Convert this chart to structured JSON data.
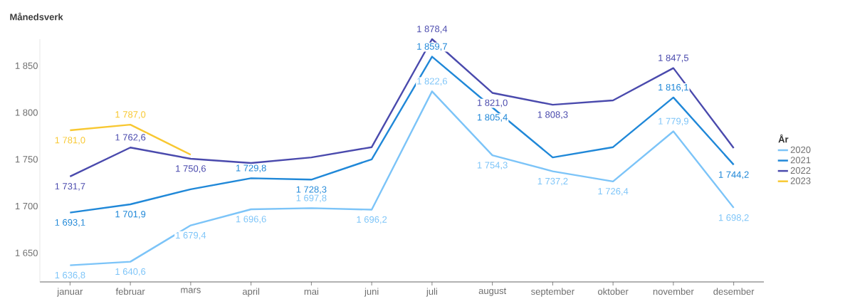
{
  "chart_data": {
    "type": "line",
    "ylabel": "Månedsverk",
    "legend_title": "År",
    "categories": [
      "januar",
      "februar",
      "mars",
      "april",
      "mai",
      "juni",
      "juli",
      "august",
      "september",
      "oktober",
      "november",
      "desember"
    ],
    "series": [
      {
        "name": "2020",
        "color": "#7cc4f8",
        "values": [
          1636.8,
          1640.6,
          1679.4,
          1696.6,
          1697.8,
          1696.2,
          1822.6,
          1754.3,
          1737.2,
          1726.4,
          1779.9,
          1698.2
        ],
        "value_labels": [
          "1 636,8",
          "1 640,6",
          "1 679,4",
          "1 696,6",
          "1 697,8",
          "1 696,2",
          "1 822,6",
          "1 754,3",
          "1 737,2",
          "1 726,4",
          "1 779,9",
          "1 698,2"
        ]
      },
      {
        "name": "2021",
        "color": "#2088d8",
        "values": [
          1693.1,
          1701.9,
          1718,
          1729.8,
          1728.3,
          1750,
          1859.7,
          1805.4,
          1752,
          1763,
          1816.1,
          1744.2
        ],
        "value_labels": [
          "1 693,1",
          "1 701,9",
          null,
          "1 729,8",
          "1 728,3",
          null,
          "1 859,7",
          "1 805,4",
          null,
          null,
          "1 816,1",
          "1 744,2"
        ]
      },
      {
        "name": "2022",
        "color": "#4a4aad",
        "values": [
          1731.7,
          1762.6,
          1750.6,
          1746,
          1752,
          1763,
          1878.4,
          1821.0,
          1808.3,
          1813,
          1847.5,
          1762
        ],
        "value_labels": [
          "1 731,7",
          "1 762,6",
          "1 750,6",
          null,
          null,
          null,
          "1 878,4",
          "1 821,0",
          "1 808,3",
          null,
          "1 847,5",
          null
        ]
      },
      {
        "name": "2023",
        "color": "#f8c832",
        "values": [
          1781.0,
          1787.0,
          1755,
          null,
          null,
          null,
          null,
          null,
          null,
          null,
          null,
          null
        ],
        "value_labels": [
          "1 781,0",
          "1 787,0",
          null,
          null,
          null,
          null,
          null,
          null,
          null,
          null,
          null,
          null
        ]
      }
    ],
    "ylim": [
      1619,
      1878.4
    ],
    "yticks": [
      {
        "value": 1650,
        "label": "1 650"
      },
      {
        "value": 1700,
        "label": "1 700"
      },
      {
        "value": 1750,
        "label": "1 750"
      },
      {
        "value": 1800,
        "label": "1 800"
      },
      {
        "value": 1850,
        "label": "1 850"
      }
    ],
    "grid": false,
    "legend": "right",
    "marker": "none",
    "line_style": "solid"
  }
}
